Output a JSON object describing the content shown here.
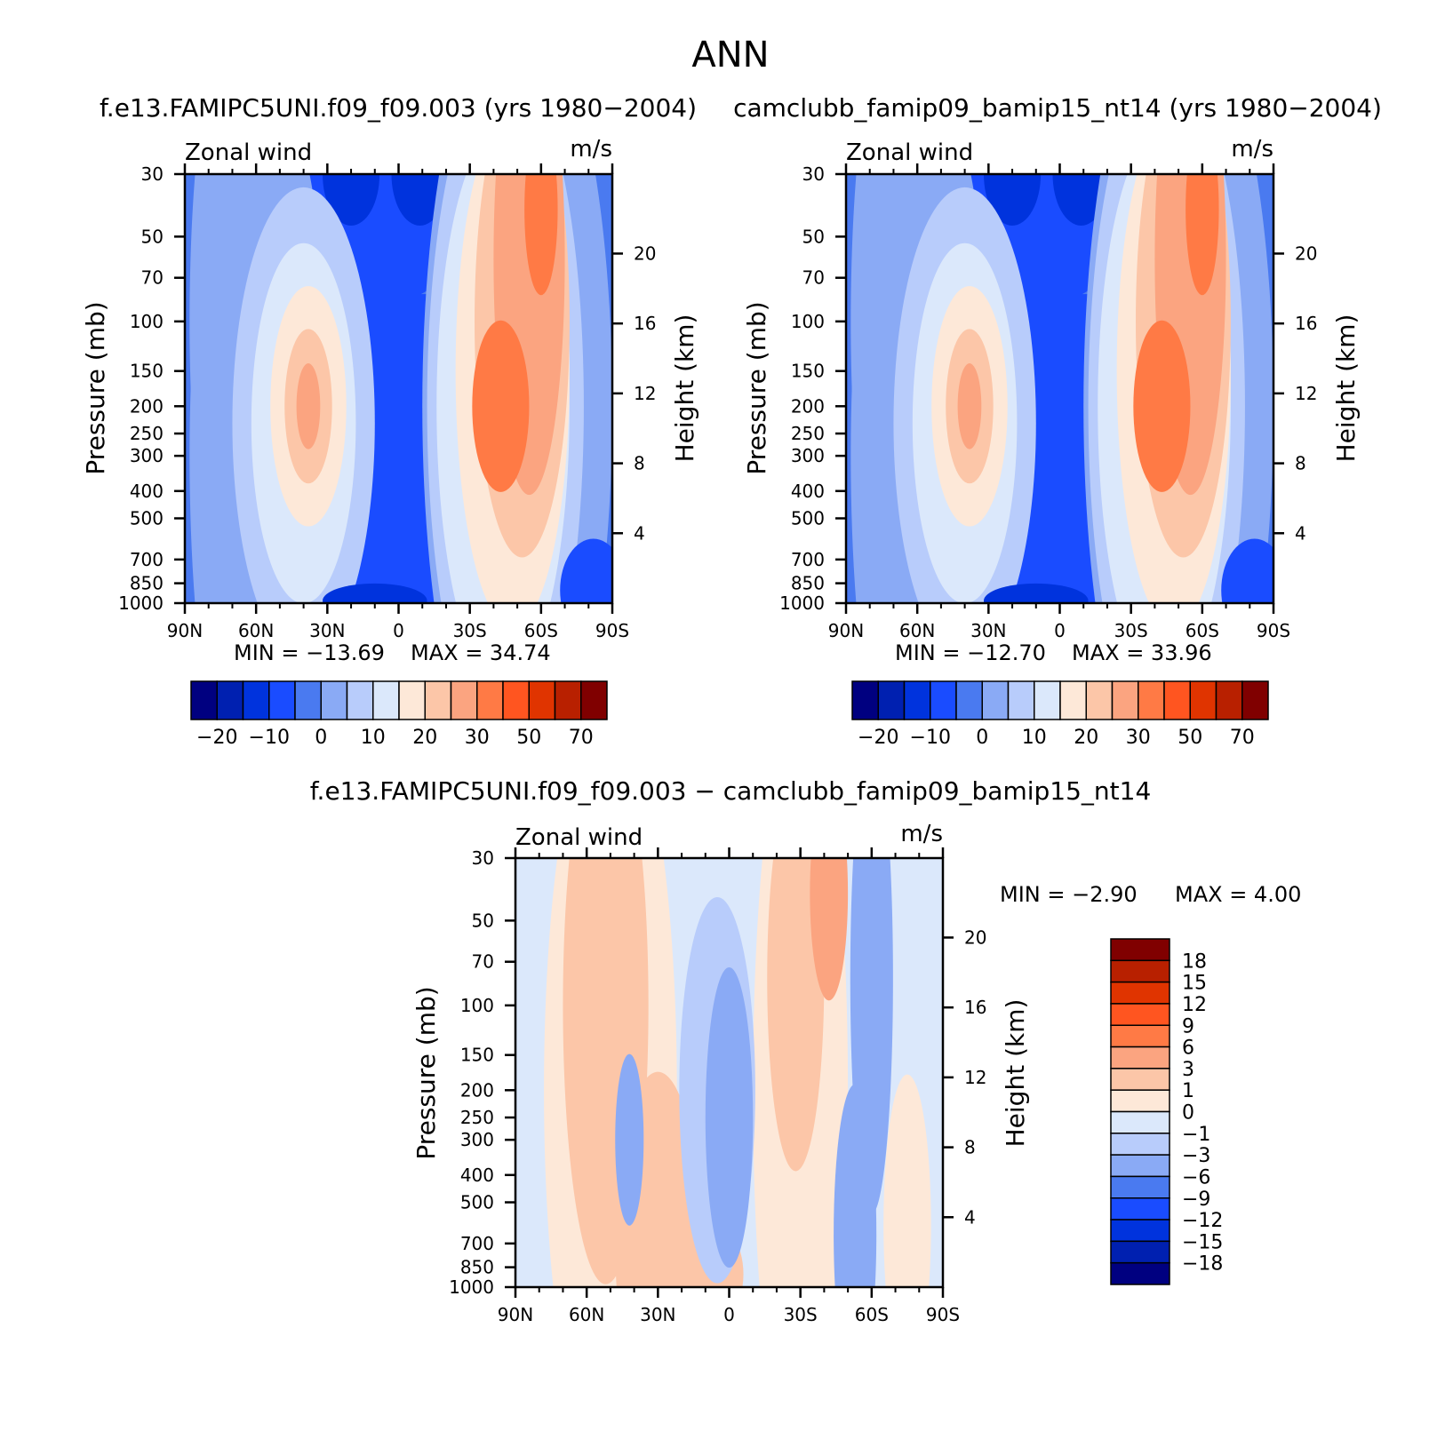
{
  "figure_title": "ANN",
  "colors": {
    "abs_levels": [
      "#000080",
      "#0020b0",
      "#0033dd",
      "#1a4cff",
      "#4a7af0",
      "#8aaaf5",
      "#b8ccfb",
      "#dbe8fb",
      "#fde8d8",
      "#fcc6a8",
      "#fba480",
      "#ff7a45",
      "#ff5520",
      "#e03400",
      "#b82000",
      "#800000"
    ],
    "diff_levels": [
      "#000080",
      "#0020b0",
      "#0033dd",
      "#1a4cff",
      "#4a7af0",
      "#8aaaf5",
      "#b8ccfb",
      "#dbe8fb",
      "#fde8d8",
      "#fcc6a8",
      "#fba480",
      "#ff7a45",
      "#ff5520",
      "#e03400",
      "#b82000",
      "#800000"
    ]
  },
  "chart_data": [
    {
      "type": "heatmap",
      "title": "f.e13.FAMIPC5UNI.f09_f09.003 (yrs 1980−2004)",
      "left_label": "Zonal wind",
      "right_label": "m/s",
      "xlabel": "",
      "ylabel": "Pressure (mb)",
      "y2label": "Height (km)",
      "x_ticks": [
        "90N",
        "60N",
        "30N",
        "0",
        "30S",
        "60S",
        "90S"
      ],
      "y_ticks": [
        "30",
        "50",
        "70",
        "100",
        "150",
        "200",
        "250",
        "300",
        "400",
        "500",
        "700",
        "850",
        "1000"
      ],
      "y2_ticks": [
        "20",
        "16",
        "12",
        "8",
        "4"
      ],
      "y_scale": "log",
      "min_text": "MIN = −13.69",
      "max_text": "MAX =  34.74",
      "colorbar_labels": [
        "−20",
        "−10",
        "0",
        "10",
        "20",
        "30",
        "50",
        "70"
      ],
      "jets": [
        {
          "lat": 38,
          "pressure": 200,
          "max": 22
        },
        {
          "lat": -43,
          "pressure": 200,
          "max": 34.74
        }
      ]
    },
    {
      "type": "heatmap",
      "title": "camclubb_famip09_bamip15_nt14 (yrs 1980−2004)",
      "left_label": "Zonal wind",
      "right_label": "m/s",
      "xlabel": "",
      "ylabel": "Pressure (mb)",
      "y2label": "Height (km)",
      "x_ticks": [
        "90N",
        "60N",
        "30N",
        "0",
        "30S",
        "60S",
        "90S"
      ],
      "y_ticks": [
        "30",
        "50",
        "70",
        "100",
        "150",
        "200",
        "250",
        "300",
        "400",
        "500",
        "700",
        "850",
        "1000"
      ],
      "y2_ticks": [
        "20",
        "16",
        "12",
        "8",
        "4"
      ],
      "y_scale": "log",
      "min_text": "MIN = −12.70",
      "max_text": "MAX =  33.96",
      "colorbar_labels": [
        "−20",
        "−10",
        "0",
        "10",
        "20",
        "30",
        "50",
        "70"
      ],
      "jets": [
        {
          "lat": 38,
          "pressure": 200,
          "max": 21
        },
        {
          "lat": -43,
          "pressure": 200,
          "max": 33.96
        }
      ]
    },
    {
      "type": "heatmap",
      "title": "f.e13.FAMIPC5UNI.f09_f09.003 − camclubb_famip09_bamip15_nt14",
      "left_label": "Zonal wind",
      "right_label": "m/s",
      "xlabel": "",
      "ylabel": "Pressure (mb)",
      "y2label": "Height (km)",
      "x_ticks": [
        "90N",
        "60N",
        "30N",
        "0",
        "30S",
        "60S",
        "90S"
      ],
      "y_ticks": [
        "30",
        "50",
        "70",
        "100",
        "150",
        "200",
        "250",
        "300",
        "400",
        "500",
        "700",
        "850",
        "1000"
      ],
      "y2_ticks": [
        "20",
        "16",
        "12",
        "8",
        "4"
      ],
      "y_scale": "log",
      "min_text": "MIN =   −2.90",
      "max_text": "MAX =    4.00",
      "colorbar_labels": [
        "18",
        "15",
        "12",
        "9",
        "6",
        "3",
        "1",
        "0",
        "−1",
        "−3",
        "−6",
        "−9",
        "−12",
        "−15",
        "−18"
      ]
    }
  ]
}
